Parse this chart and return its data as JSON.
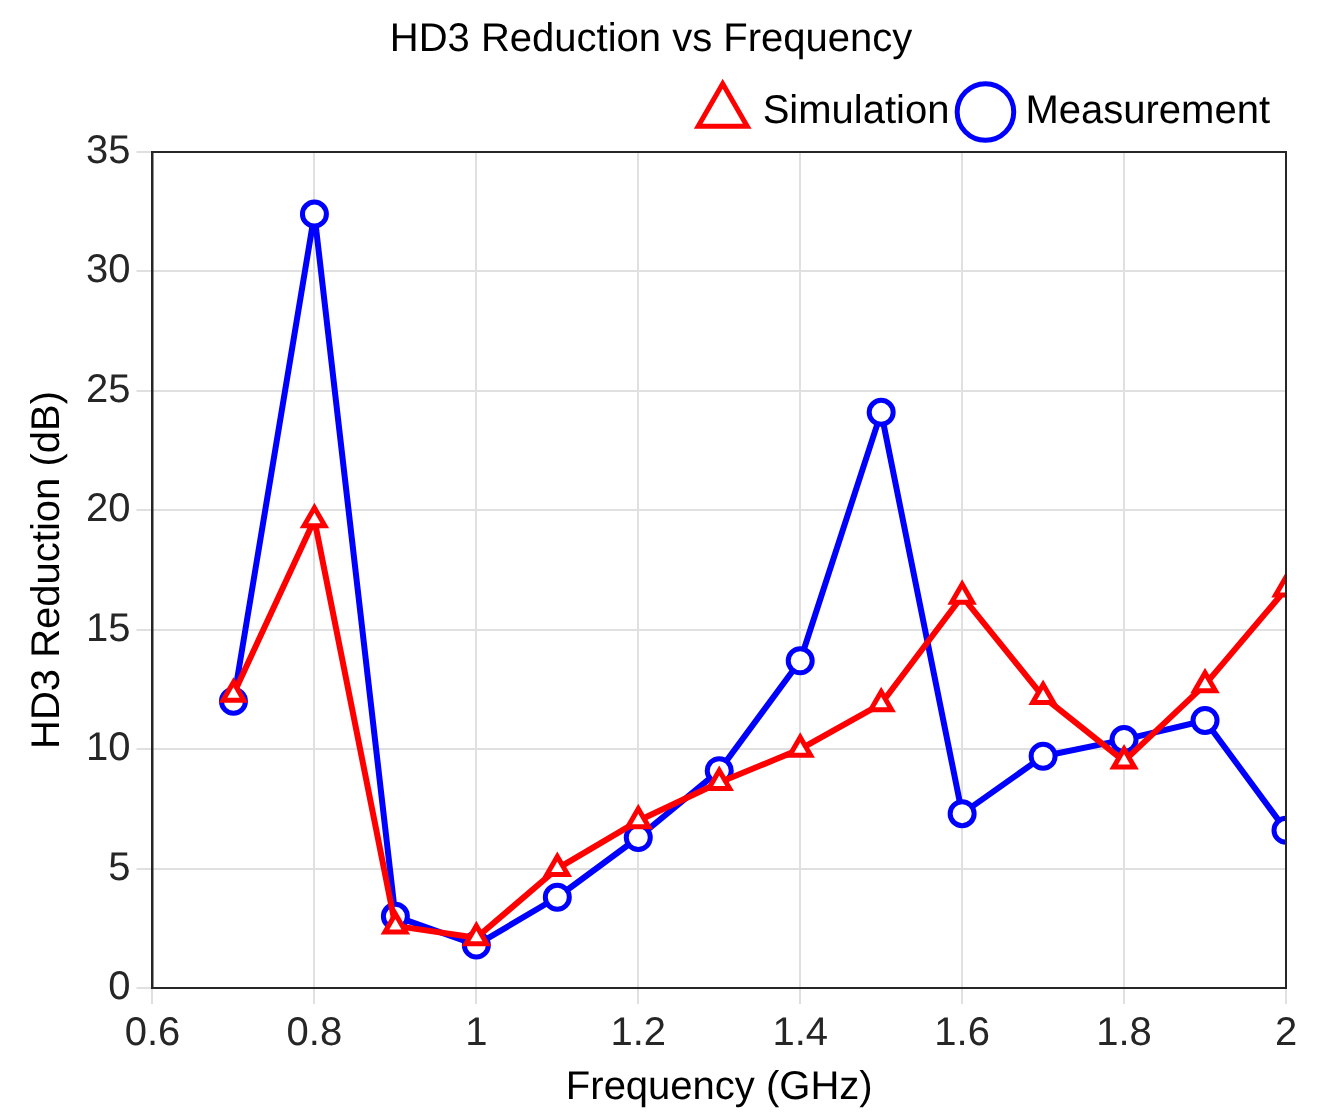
{
  "chart_data": {
    "type": "line",
    "title": "HD3 Reduction vs Frequency",
    "xlabel": "Frequency (GHz)",
    "ylabel": "HD3 Reduction (dB)",
    "x": [
      0.7,
      0.8,
      0.9,
      1.0,
      1.1,
      1.2,
      1.3,
      1.4,
      1.5,
      1.6,
      1.7,
      1.8,
      1.9,
      2.0
    ],
    "series": [
      {
        "name": "Measurement",
        "color": "#0000ff",
        "marker": "circle",
        "values": [
          12.0,
          32.4,
          3.0,
          1.8,
          3.8,
          6.3,
          9.1,
          13.7,
          24.1,
          7.3,
          9.7,
          10.4,
          11.2,
          6.6
        ]
      },
      {
        "name": "Simulation",
        "color": "#ff0000",
        "marker": "triangle",
        "values": [
          12.3,
          19.6,
          2.6,
          2.1,
          5.0,
          7.0,
          8.6,
          10.0,
          11.9,
          16.4,
          12.2,
          9.5,
          12.7,
          16.7
        ]
      }
    ],
    "xlim": [
      0.6,
      2
    ],
    "xticks": [
      0.6,
      0.8,
      1,
      1.2,
      1.4,
      1.6,
      1.8,
      2
    ],
    "ylim": [
      0,
      35
    ],
    "yticks": [
      0,
      5,
      10,
      15,
      20,
      25,
      30,
      35
    ],
    "grid": true,
    "legend": "top right",
    "line_style": "solid"
  }
}
